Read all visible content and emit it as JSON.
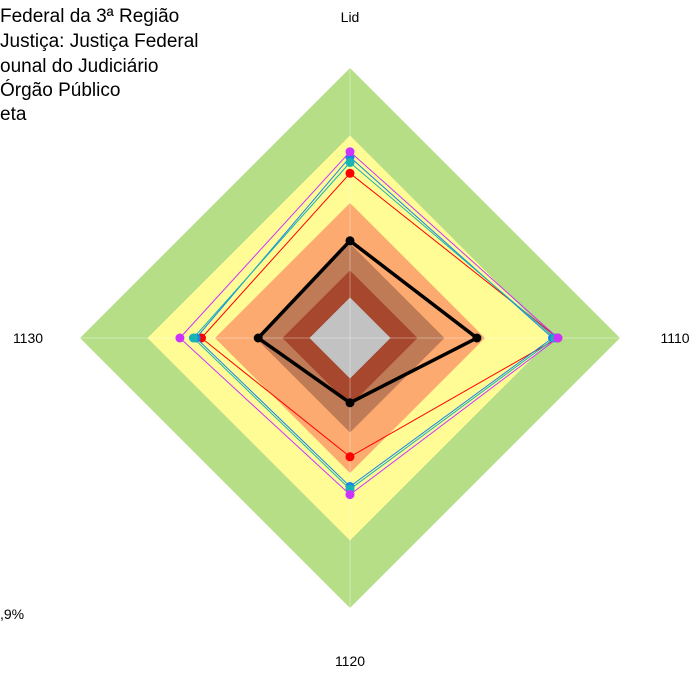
{
  "legend_text": [
    "Federal da 3ª Região",
    "Justiça: Justiça Federal",
    "ounal do Judiciário",
    "Órgão Público",
    "eta"
  ],
  "footnote": ",9%",
  "chart_data": {
    "type": "radar",
    "axes": [
      "Lid",
      "1110",
      "1120",
      "1130"
    ],
    "max": 1.0,
    "bands": [
      {
        "upper": 1.0,
        "color": "#b5de87"
      },
      {
        "upper": 0.75,
        "color": "#fffc96"
      },
      {
        "upper": 0.5,
        "color": "#fcaa6f"
      },
      {
        "upper": 0.35,
        "color": "#be7b56"
      },
      {
        "upper": 0.25,
        "color": "#a6472e"
      },
      {
        "upper": 0.15,
        "color": "#c2c2c2"
      }
    ],
    "series": [
      {
        "values": [
          0.36,
          0.47,
          0.24,
          0.34
        ],
        "color": "#000000"
      },
      {
        "values": [
          0.61,
          0.77,
          0.44,
          0.55
        ],
        "color": "#ff0000"
      },
      {
        "values": [
          0.67,
          0.75,
          0.55,
          0.57
        ],
        "color": "#1a85e6"
      },
      {
        "values": [
          0.65,
          0.76,
          0.56,
          0.58
        ],
        "color": "#19b3b3"
      },
      {
        "values": [
          0.69,
          0.77,
          0.58,
          0.63
        ],
        "color": "#cc33ff"
      }
    ]
  }
}
